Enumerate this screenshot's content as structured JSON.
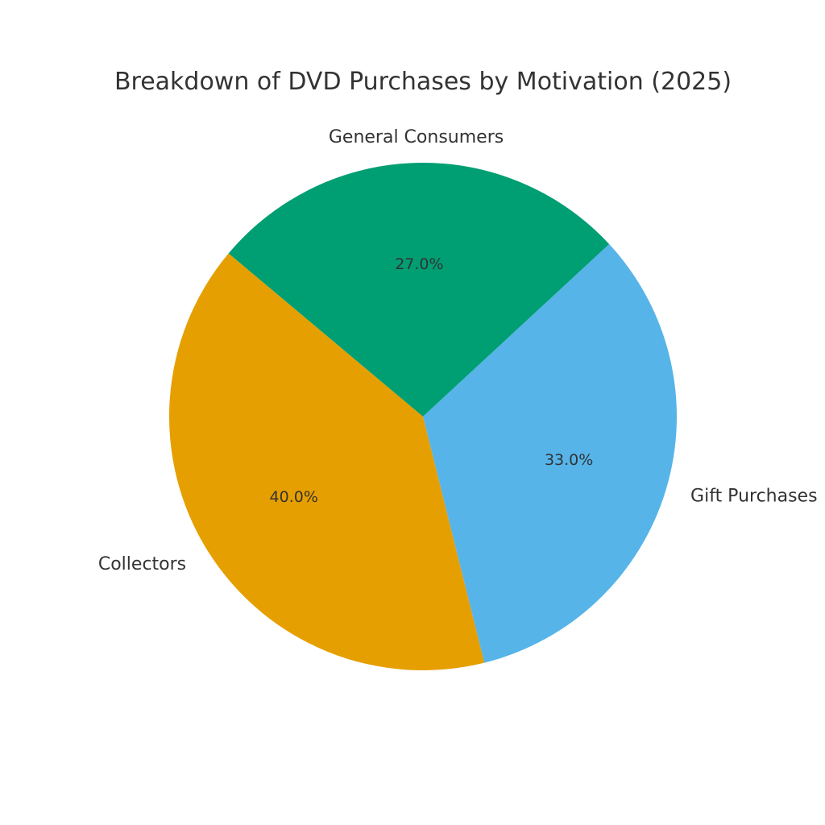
{
  "chart_data": {
    "type": "pie",
    "title": "Breakdown of DVD Purchases by Motivation (2025)",
    "categories": [
      "Collectors",
      "Gift Purchases",
      "General Consumers"
    ],
    "values": [
      40.0,
      33.0,
      27.0
    ],
    "percent_labels": [
      "40.0%",
      "33.0%",
      "27.0%"
    ],
    "colors": [
      "#E69F00",
      "#56B4E9",
      "#009E73"
    ],
    "start_angle_deg": 140,
    "direction": "counterclockwise",
    "legend": "none"
  }
}
